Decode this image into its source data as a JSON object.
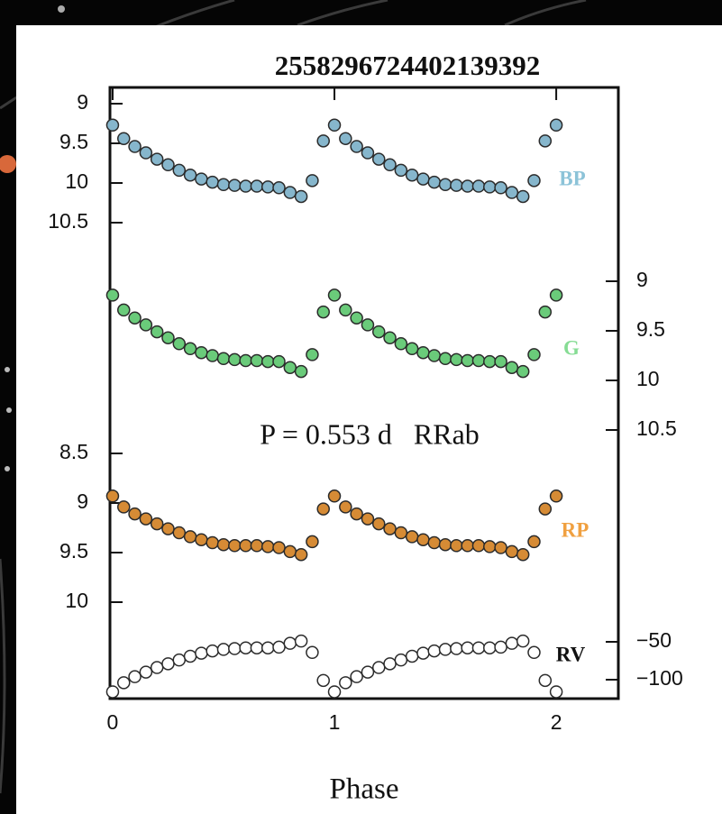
{
  "chart_data": {
    "type": "scatter",
    "title": "2558296724402139392",
    "x_label": "Phase",
    "annotation": "P = 0.553 d   RRab",
    "xlim": [
      -0.012,
      2.28
    ],
    "xticks": [
      0,
      1,
      2
    ],
    "x": [
      0,
      0.05,
      0.1,
      0.15,
      0.2,
      0.25,
      0.3,
      0.35,
      0.4,
      0.45,
      0.5,
      0.55,
      0.6,
      0.65,
      0.7,
      0.75,
      0.8,
      0.85,
      0.9,
      0.95,
      1,
      1.05,
      1.1,
      1.15,
      1.2,
      1.25,
      1.3,
      1.35,
      1.4,
      1.45,
      1.5,
      1.55,
      1.6,
      1.65,
      1.7,
      1.75,
      1.8,
      1.85,
      1.9,
      1.95,
      2
    ],
    "series": [
      {
        "name": "BP",
        "color": "#86b6cc",
        "label_color": "#8cc3d8",
        "axis": "left",
        "ylim": [
          9,
          10.5
        ],
        "yticks": [
          9,
          9.5,
          10,
          10.5
        ],
        "values": [
          9.27,
          9.44,
          9.54,
          9.62,
          9.7,
          9.77,
          9.84,
          9.9,
          9.95,
          9.99,
          10.02,
          10.03,
          10.04,
          10.04,
          10.05,
          10.06,
          10.12,
          10.17,
          9.97,
          9.47,
          9.27,
          9.44,
          9.54,
          9.62,
          9.7,
          9.77,
          9.84,
          9.9,
          9.95,
          9.99,
          10.02,
          10.03,
          10.04,
          10.04,
          10.05,
          10.06,
          10.12,
          10.17,
          9.97,
          9.47,
          9.27
        ]
      },
      {
        "name": "G",
        "color": "#6acb7a",
        "label_color": "#86dc94",
        "axis": "right",
        "ylim": [
          9,
          10.5
        ],
        "yticks": [
          9,
          9.5,
          10,
          10.5
        ],
        "values": [
          9.14,
          9.29,
          9.37,
          9.44,
          9.51,
          9.57,
          9.63,
          9.68,
          9.72,
          9.75,
          9.78,
          9.79,
          9.8,
          9.8,
          9.81,
          9.81,
          9.87,
          9.91,
          9.74,
          9.31,
          9.14,
          9.29,
          9.37,
          9.44,
          9.51,
          9.57,
          9.63,
          9.68,
          9.72,
          9.75,
          9.78,
          9.79,
          9.8,
          9.8,
          9.81,
          9.81,
          9.87,
          9.91,
          9.74,
          9.31,
          9.14
        ]
      },
      {
        "name": "RP",
        "color": "#d68b35",
        "label_color": "#f0a040",
        "axis": "left",
        "ylim": [
          8.5,
          10
        ],
        "yticks": [
          8.5,
          9,
          9.5,
          10
        ],
        "values": [
          8.93,
          9.04,
          9.11,
          9.16,
          9.21,
          9.26,
          9.3,
          9.34,
          9.37,
          9.4,
          9.42,
          9.43,
          9.43,
          9.43,
          9.44,
          9.45,
          9.49,
          9.52,
          9.39,
          9.06,
          8.93,
          9.04,
          9.11,
          9.16,
          9.21,
          9.26,
          9.3,
          9.34,
          9.37,
          9.4,
          9.42,
          9.43,
          9.43,
          9.43,
          9.44,
          9.45,
          9.49,
          9.52,
          9.39,
          9.06,
          8.93
        ]
      },
      {
        "name": "RV",
        "color": "#ffffff",
        "label_color": "#111111",
        "axis": "right",
        "ylim": [
          -50,
          -100
        ],
        "yticks": [
          {
            "value": -50,
            "label": "−50"
          },
          {
            "value": -100,
            "label": "−100"
          }
        ],
        "values": [
          -116,
          -104,
          -96,
          -90,
          -84,
          -79,
          -74,
          -69,
          -65,
          -62,
          -60,
          -59,
          -58,
          -58,
          -58,
          -57,
          -52,
          -49,
          -64,
          -101,
          -116,
          -104,
          -96,
          -90,
          -84,
          -79,
          -74,
          -69,
          -65,
          -62,
          -60,
          -59,
          -58,
          -58,
          -58,
          -57,
          -52,
          -49,
          -64,
          -101,
          -116
        ]
      }
    ]
  }
}
